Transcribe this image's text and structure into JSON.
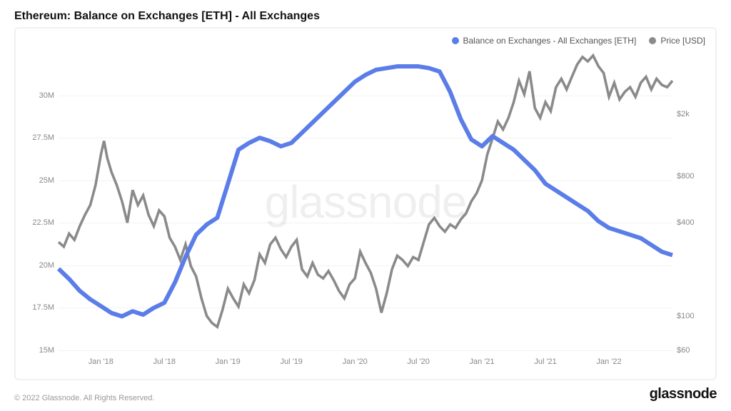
{
  "title": "Ethereum: Balance on Exchanges [ETH] - All Exchanges",
  "watermark": "glassnode",
  "copyright": "© 2022 Glassnode. All Rights Reserved.",
  "brand": "glassnode",
  "legend": {
    "balance": {
      "label": "Balance on Exchanges - All Exchanges [ETH]",
      "color": "#5b7de8"
    },
    "price": {
      "label": "Price [USD]",
      "color": "#8a8a8a"
    }
  },
  "chart": {
    "type": "line",
    "background_color": "#ffffff",
    "grid_color": "#f2f2f2",
    "x_axis": {
      "domain": [
        0,
        58
      ],
      "ticks": [
        {
          "pos": 4,
          "label": "Jan '18"
        },
        {
          "pos": 10,
          "label": "Jul '18"
        },
        {
          "pos": 16,
          "label": "Jan '19"
        },
        {
          "pos": 22,
          "label": "Jul '19"
        },
        {
          "pos": 28,
          "label": "Jan '20"
        },
        {
          "pos": 34,
          "label": "Jul '20"
        },
        {
          "pos": 40,
          "label": "Jan '21"
        },
        {
          "pos": 46,
          "label": "Jul '21"
        },
        {
          "pos": 52,
          "label": "Jan '22"
        }
      ]
    },
    "y_left": {
      "domain": [
        15,
        32.5
      ],
      "ticks": [
        {
          "v": 15,
          "label": "15M"
        },
        {
          "v": 17.5,
          "label": "17.5M"
        },
        {
          "v": 20,
          "label": "20M"
        },
        {
          "v": 22.5,
          "label": "22.5M"
        },
        {
          "v": 25,
          "label": "25M"
        },
        {
          "v": 27.5,
          "label": "27.5M"
        },
        {
          "v": 30,
          "label": "30M"
        }
      ]
    },
    "y_right": {
      "scale": "log",
      "domain": [
        60,
        5000
      ],
      "ticks": [
        {
          "v": 60,
          "label": "$60"
        },
        {
          "v": 100,
          "label": "$100"
        },
        {
          "v": 400,
          "label": "$400"
        },
        {
          "v": 800,
          "label": "$800"
        },
        {
          "v": 2000,
          "label": "$2k"
        }
      ]
    },
    "series": {
      "balance": {
        "color": "#5b7de8",
        "line_width": 2,
        "data": [
          [
            0,
            19.8
          ],
          [
            1,
            19.2
          ],
          [
            2,
            18.5
          ],
          [
            3,
            18.0
          ],
          [
            4,
            17.6
          ],
          [
            5,
            17.2
          ],
          [
            6,
            17.0
          ],
          [
            7,
            17.3
          ],
          [
            8,
            17.1
          ],
          [
            9,
            17.5
          ],
          [
            10,
            17.8
          ],
          [
            11,
            19.0
          ],
          [
            12,
            20.5
          ],
          [
            13,
            21.8
          ],
          [
            14,
            22.4
          ],
          [
            15,
            22.8
          ],
          [
            16,
            24.8
          ],
          [
            17,
            26.8
          ],
          [
            18,
            27.2
          ],
          [
            19,
            27.5
          ],
          [
            20,
            27.3
          ],
          [
            21,
            27.0
          ],
          [
            22,
            27.2
          ],
          [
            23,
            27.8
          ],
          [
            24,
            28.4
          ],
          [
            25,
            29.0
          ],
          [
            26,
            29.6
          ],
          [
            27,
            30.2
          ],
          [
            28,
            30.8
          ],
          [
            29,
            31.2
          ],
          [
            30,
            31.5
          ],
          [
            31,
            31.6
          ],
          [
            32,
            31.7
          ],
          [
            33,
            31.7
          ],
          [
            34,
            31.7
          ],
          [
            35,
            31.6
          ],
          [
            36,
            31.4
          ],
          [
            37,
            30.2
          ],
          [
            38,
            28.6
          ],
          [
            39,
            27.4
          ],
          [
            40,
            27.0
          ],
          [
            41,
            27.6
          ],
          [
            42,
            27.2
          ],
          [
            43,
            26.8
          ],
          [
            44,
            26.2
          ],
          [
            45,
            25.6
          ],
          [
            46,
            24.8
          ],
          [
            47,
            24.4
          ],
          [
            48,
            24.0
          ],
          [
            49,
            23.6
          ],
          [
            50,
            23.2
          ],
          [
            51,
            22.6
          ],
          [
            52,
            22.2
          ],
          [
            53,
            22.0
          ],
          [
            54,
            21.8
          ],
          [
            55,
            21.6
          ],
          [
            56,
            21.2
          ],
          [
            57,
            20.8
          ],
          [
            58,
            20.6
          ]
        ]
      },
      "price": {
        "color": "#8a8a8a",
        "line_width": 1.2,
        "data": [
          [
            0,
            300
          ],
          [
            0.5,
            280
          ],
          [
            1,
            340
          ],
          [
            1.5,
            310
          ],
          [
            2,
            380
          ],
          [
            2.5,
            450
          ],
          [
            3,
            520
          ],
          [
            3.5,
            700
          ],
          [
            4,
            1100
          ],
          [
            4.3,
            1350
          ],
          [
            4.6,
            1050
          ],
          [
            5,
            850
          ],
          [
            5.5,
            700
          ],
          [
            6,
            550
          ],
          [
            6.5,
            400
          ],
          [
            7,
            650
          ],
          [
            7.5,
            520
          ],
          [
            8,
            600
          ],
          [
            8.5,
            450
          ],
          [
            9,
            380
          ],
          [
            9.5,
            480
          ],
          [
            10,
            440
          ],
          [
            10.5,
            320
          ],
          [
            11,
            280
          ],
          [
            11.5,
            230
          ],
          [
            12,
            290
          ],
          [
            12.5,
            210
          ],
          [
            13,
            180
          ],
          [
            13.5,
            130
          ],
          [
            14,
            100
          ],
          [
            14.5,
            90
          ],
          [
            15,
            85
          ],
          [
            15.5,
            110
          ],
          [
            16,
            150
          ],
          [
            16.5,
            130
          ],
          [
            17,
            115
          ],
          [
            17.5,
            160
          ],
          [
            18,
            140
          ],
          [
            18.5,
            170
          ],
          [
            19,
            250
          ],
          [
            19.5,
            220
          ],
          [
            20,
            290
          ],
          [
            20.5,
            320
          ],
          [
            21,
            270
          ],
          [
            21.5,
            240
          ],
          [
            22,
            280
          ],
          [
            22.5,
            310
          ],
          [
            23,
            200
          ],
          [
            23.5,
            180
          ],
          [
            24,
            220
          ],
          [
            24.5,
            185
          ],
          [
            25,
            175
          ],
          [
            25.5,
            195
          ],
          [
            26,
            170
          ],
          [
            26.5,
            145
          ],
          [
            27,
            130
          ],
          [
            27.5,
            160
          ],
          [
            28,
            175
          ],
          [
            28.5,
            260
          ],
          [
            29,
            220
          ],
          [
            29.5,
            190
          ],
          [
            30,
            150
          ],
          [
            30.5,
            105
          ],
          [
            31,
            140
          ],
          [
            31.5,
            200
          ],
          [
            32,
            245
          ],
          [
            32.5,
            230
          ],
          [
            33,
            210
          ],
          [
            33.5,
            240
          ],
          [
            34,
            230
          ],
          [
            34.5,
            300
          ],
          [
            35,
            390
          ],
          [
            35.5,
            430
          ],
          [
            36,
            380
          ],
          [
            36.5,
            350
          ],
          [
            37,
            390
          ],
          [
            37.5,
            370
          ],
          [
            38,
            420
          ],
          [
            38.5,
            460
          ],
          [
            39,
            550
          ],
          [
            39.5,
            620
          ],
          [
            40,
            750
          ],
          [
            40.5,
            1100
          ],
          [
            41,
            1400
          ],
          [
            41.5,
            1800
          ],
          [
            42,
            1600
          ],
          [
            42.5,
            1900
          ],
          [
            43,
            2400
          ],
          [
            43.5,
            3300
          ],
          [
            44,
            2700
          ],
          [
            44.5,
            3800
          ],
          [
            45,
            2200
          ],
          [
            45.5,
            1900
          ],
          [
            46,
            2400
          ],
          [
            46.5,
            2100
          ],
          [
            47,
            3000
          ],
          [
            47.5,
            3400
          ],
          [
            48,
            2900
          ],
          [
            48.5,
            3500
          ],
          [
            49,
            4200
          ],
          [
            49.5,
            4700
          ],
          [
            50,
            4400
          ],
          [
            50.5,
            4800
          ],
          [
            51,
            4100
          ],
          [
            51.5,
            3700
          ],
          [
            52,
            2600
          ],
          [
            52.5,
            3200
          ],
          [
            53,
            2500
          ],
          [
            53.5,
            2800
          ],
          [
            54,
            3000
          ],
          [
            54.5,
            2600
          ],
          [
            55,
            3200
          ],
          [
            55.5,
            3500
          ],
          [
            56,
            2900
          ],
          [
            56.5,
            3400
          ],
          [
            57,
            3100
          ],
          [
            57.5,
            3000
          ],
          [
            58,
            3300
          ]
        ]
      }
    }
  }
}
